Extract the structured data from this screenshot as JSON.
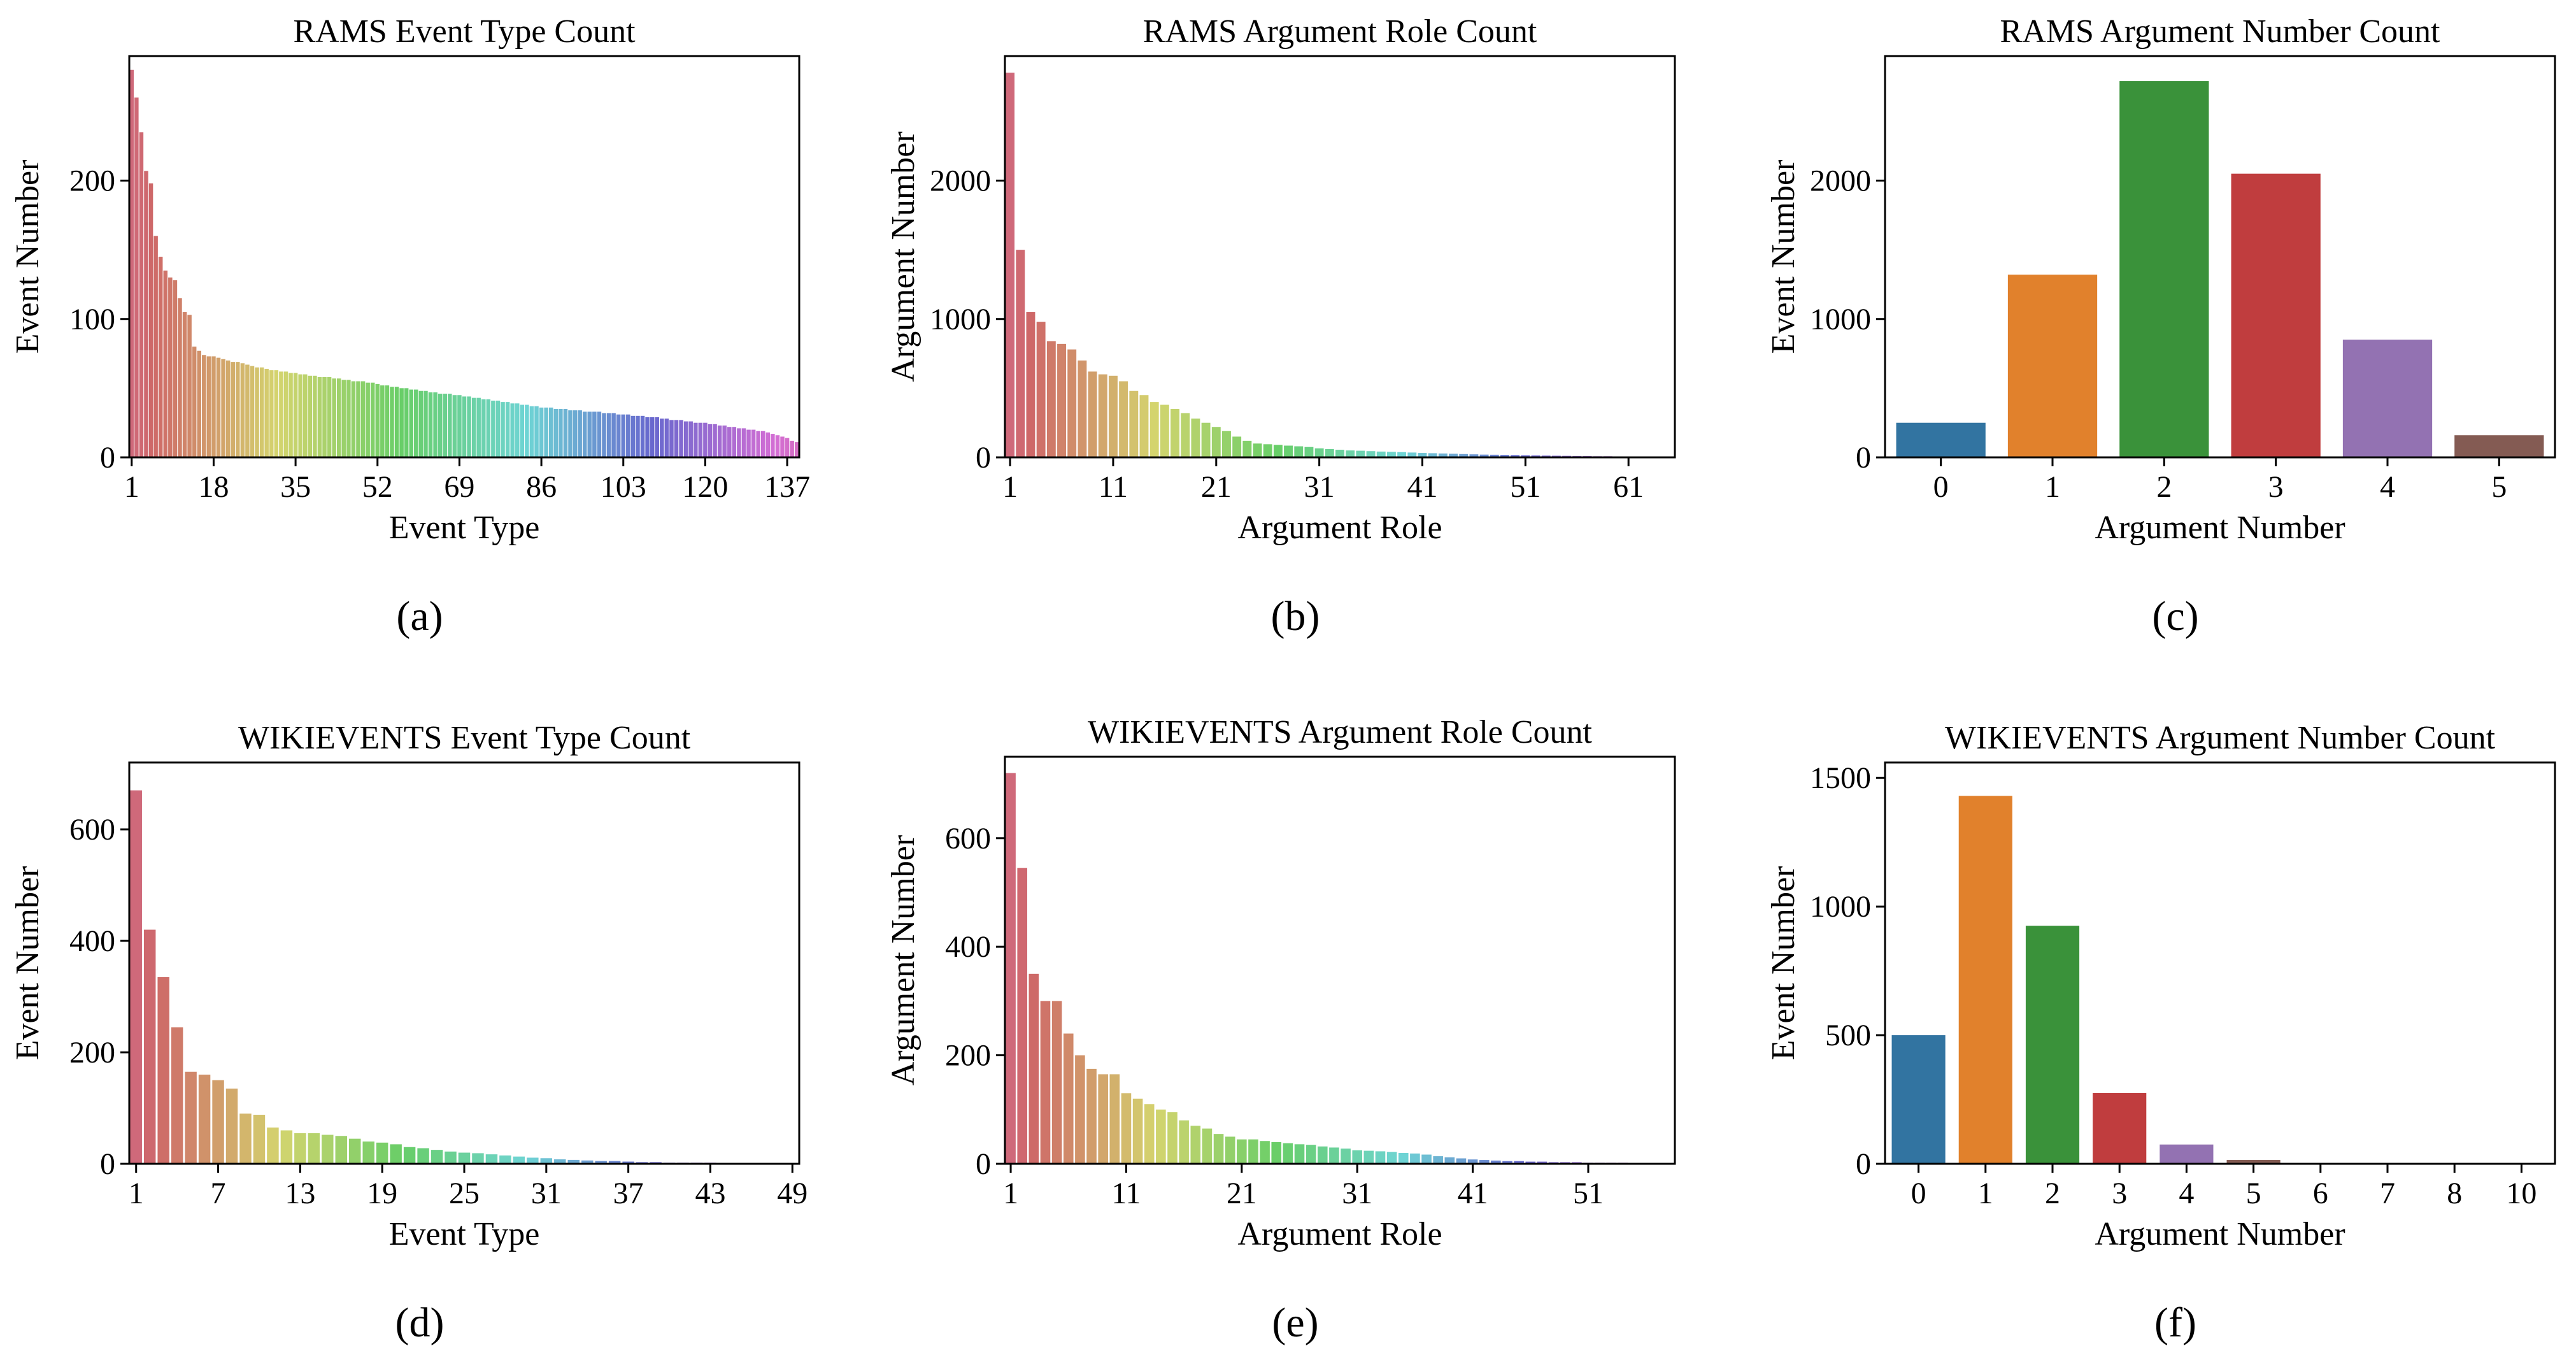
{
  "chart_data": [
    {
      "id": "a",
      "type": "bar",
      "title": "RAMS Event Type Count",
      "xlabel": "Event Type",
      "ylabel": "Event Number",
      "caption": "(a)",
      "ylim": [
        0,
        290
      ],
      "yticks": [
        0,
        100,
        200
      ],
      "xtick_labels": [
        "1",
        "18",
        "35",
        "52",
        "69",
        "86",
        "103",
        "120",
        "137"
      ],
      "palette": "husl",
      "categories": [
        "1",
        "2",
        "3",
        "4",
        "5",
        "6",
        "7",
        "8",
        "9",
        "10",
        "11",
        "12",
        "13",
        "14",
        "15",
        "16",
        "17",
        "18",
        "19",
        "20",
        "21",
        "22",
        "23",
        "24",
        "25",
        "26",
        "27",
        "28",
        "29",
        "30",
        "31",
        "32",
        "33",
        "34",
        "35",
        "36",
        "37",
        "38",
        "39",
        "40",
        "41",
        "42",
        "43",
        "44",
        "45",
        "46",
        "47",
        "48",
        "49",
        "50",
        "51",
        "52",
        "53",
        "54",
        "55",
        "56",
        "57",
        "58",
        "59",
        "60",
        "61",
        "62",
        "63",
        "64",
        "65",
        "66",
        "67",
        "68",
        "69",
        "70",
        "71",
        "72",
        "73",
        "74",
        "75",
        "76",
        "77",
        "78",
        "79",
        "80",
        "81",
        "82",
        "83",
        "84",
        "85",
        "86",
        "87",
        "88",
        "89",
        "90",
        "91",
        "92",
        "93",
        "94",
        "95",
        "96",
        "97",
        "98",
        "99",
        "100",
        "101",
        "102",
        "103",
        "104",
        "105",
        "106",
        "107",
        "108",
        "109",
        "110",
        "111",
        "112",
        "113",
        "114",
        "115",
        "116",
        "117",
        "118",
        "119",
        "120",
        "121",
        "122",
        "123",
        "124",
        "125",
        "126",
        "127",
        "128",
        "129",
        "130",
        "131",
        "132",
        "133",
        "134",
        "135",
        "136",
        "137",
        "138",
        "139"
      ],
      "values": [
        280,
        260,
        235,
        207,
        198,
        160,
        145,
        135,
        130,
        128,
        115,
        105,
        103,
        80,
        77,
        74,
        73,
        73,
        72,
        71,
        70,
        69,
        69,
        68,
        67,
        66,
        65,
        65,
        64,
        63,
        63,
        62,
        62,
        61,
        61,
        60,
        60,
        59,
        59,
        58,
        58,
        58,
        57,
        57,
        56,
        56,
        55,
        55,
        55,
        54,
        54,
        53,
        52,
        52,
        51,
        51,
        50,
        50,
        49,
        49,
        48,
        48,
        47,
        47,
        46,
        46,
        46,
        45,
        45,
        44,
        44,
        43,
        43,
        42,
        42,
        41,
        41,
        40,
        40,
        39,
        39,
        38,
        38,
        37,
        37,
        36,
        36,
        36,
        35,
        35,
        35,
        34,
        34,
        34,
        33,
        33,
        33,
        33,
        32,
        32,
        32,
        31,
        31,
        31,
        30,
        30,
        30,
        29,
        29,
        29,
        28,
        28,
        27,
        27,
        27,
        26,
        26,
        25,
        25,
        25,
        24,
        24,
        23,
        23,
        22,
        22,
        21,
        21,
        20,
        20,
        19,
        19,
        18,
        17,
        16,
        15,
        14,
        12,
        11
      ]
    },
    {
      "id": "b",
      "type": "bar",
      "title": "RAMS Argument Role Count",
      "xlabel": "Argument Role",
      "ylabel": "Argument Number",
      "caption": "(b)",
      "ylim": [
        0,
        2900
      ],
      "yticks": [
        0,
        1000,
        2000
      ],
      "xtick_labels": [
        "1",
        "11",
        "21",
        "31",
        "41",
        "51",
        "61"
      ],
      "palette": "husl",
      "categories": [
        "1",
        "2",
        "3",
        "4",
        "5",
        "6",
        "7",
        "8",
        "9",
        "10",
        "11",
        "12",
        "13",
        "14",
        "15",
        "16",
        "17",
        "18",
        "19",
        "20",
        "21",
        "22",
        "23",
        "24",
        "25",
        "26",
        "27",
        "28",
        "29",
        "30",
        "31",
        "32",
        "33",
        "34",
        "35",
        "36",
        "37",
        "38",
        "39",
        "40",
        "41",
        "42",
        "43",
        "44",
        "45",
        "46",
        "47",
        "48",
        "49",
        "50",
        "51",
        "52",
        "53",
        "54",
        "55",
        "56",
        "57",
        "58",
        "59",
        "60",
        "61",
        "62",
        "63",
        "64",
        "65"
      ],
      "values": [
        2780,
        1500,
        1050,
        980,
        840,
        820,
        780,
        700,
        620,
        600,
        590,
        550,
        480,
        450,
        400,
        380,
        350,
        320,
        280,
        250,
        220,
        190,
        150,
        120,
        100,
        95,
        90,
        85,
        80,
        75,
        65,
        60,
        55,
        50,
        48,
        45,
        42,
        40,
        38,
        35,
        32,
        30,
        28,
        26,
        24,
        22,
        20,
        19,
        18,
        17,
        15,
        14,
        13,
        12,
        11,
        10,
        9,
        8,
        8,
        7,
        6,
        5,
        5,
        4,
        3
      ]
    },
    {
      "id": "c",
      "type": "bar",
      "title": "RAMS Argument Number Count",
      "xlabel": "Argument Number",
      "ylabel": "Event Number",
      "caption": "(c)",
      "ylim": [
        0,
        2900
      ],
      "yticks": [
        0,
        1000,
        2000
      ],
      "categories": [
        "0",
        "1",
        "2",
        "3",
        "4",
        "5"
      ],
      "values": [
        250,
        1320,
        2720,
        2050,
        850,
        160
      ],
      "colors": [
        "#3274a1",
        "#e1812c",
        "#3a923a",
        "#c03d3e",
        "#9372b2",
        "#845b53"
      ]
    },
    {
      "id": "d",
      "type": "bar",
      "title": "WIKIEVENTS Event Type Count",
      "xlabel": "Event Type",
      "ylabel": "Event Number",
      "caption": "(d)",
      "ylim": [
        0,
        720
      ],
      "yticks": [
        0,
        200,
        400,
        600
      ],
      "xtick_labels": [
        "1",
        "7",
        "13",
        "19",
        "25",
        "31",
        "37",
        "43",
        "49"
      ],
      "palette": "husl",
      "categories": [
        "1",
        "2",
        "3",
        "4",
        "5",
        "6",
        "7",
        "8",
        "9",
        "10",
        "11",
        "12",
        "13",
        "14",
        "15",
        "16",
        "17",
        "18",
        "19",
        "20",
        "21",
        "22",
        "23",
        "24",
        "25",
        "26",
        "27",
        "28",
        "29",
        "30",
        "31",
        "32",
        "33",
        "34",
        "35",
        "36",
        "37",
        "38",
        "39",
        "40",
        "41",
        "42",
        "43",
        "44",
        "45",
        "46",
        "47",
        "48",
        "49"
      ],
      "values": [
        670,
        420,
        335,
        245,
        165,
        160,
        150,
        135,
        90,
        88,
        65,
        60,
        55,
        55,
        52,
        50,
        45,
        40,
        38,
        35,
        30,
        28,
        25,
        22,
        20,
        19,
        17,
        15,
        13,
        11,
        10,
        8,
        7,
        6,
        5,
        5,
        4,
        3,
        3,
        2,
        2,
        2,
        2,
        1,
        1,
        1,
        1,
        1,
        1
      ]
    },
    {
      "id": "e",
      "type": "bar",
      "title": "WIKIEVENTS Argument Role Count",
      "xlabel": "Argument Role",
      "ylabel": "Argument Number",
      "caption": "(e)",
      "ylim": [
        0,
        750
      ],
      "yticks": [
        0,
        200,
        400,
        600
      ],
      "xtick_labels": [
        "1",
        "11",
        "21",
        "31",
        "41",
        "51"
      ],
      "palette": "husl",
      "categories": [
        "1",
        "2",
        "3",
        "4",
        "5",
        "6",
        "7",
        "8",
        "9",
        "10",
        "11",
        "12",
        "13",
        "14",
        "15",
        "16",
        "17",
        "18",
        "19",
        "20",
        "21",
        "22",
        "23",
        "24",
        "25",
        "26",
        "27",
        "28",
        "29",
        "30",
        "31",
        "32",
        "33",
        "34",
        "35",
        "36",
        "37",
        "38",
        "39",
        "40",
        "41",
        "42",
        "43",
        "44",
        "45",
        "46",
        "47",
        "48",
        "49",
        "50",
        "51",
        "52",
        "53",
        "54",
        "55",
        "56",
        "57",
        "58"
      ],
      "values": [
        720,
        545,
        350,
        300,
        300,
        240,
        200,
        175,
        165,
        165,
        130,
        120,
        110,
        100,
        95,
        80,
        70,
        65,
        55,
        50,
        45,
        45,
        42,
        40,
        38,
        36,
        35,
        32,
        30,
        28,
        25,
        24,
        23,
        22,
        20,
        19,
        17,
        14,
        12,
        10,
        8,
        7,
        6,
        5,
        5,
        4,
        4,
        3,
        3,
        3,
        2,
        2,
        2,
        2,
        1,
        1,
        1,
        1
      ]
    },
    {
      "id": "f",
      "type": "bar",
      "title": "WIKIEVENTS Argument Number Count",
      "xlabel": "Argument Number",
      "ylabel": "Event Number",
      "caption": "(f)",
      "ylim": [
        0,
        1560
      ],
      "yticks": [
        0,
        500,
        1000,
        1500
      ],
      "categories": [
        "0",
        "1",
        "2",
        "3",
        "4",
        "5",
        "6",
        "7",
        "8",
        "10"
      ],
      "values": [
        500,
        1430,
        925,
        275,
        75,
        15,
        3,
        2,
        2,
        2
      ],
      "colors": [
        "#3274a1",
        "#e1812c",
        "#3a923a",
        "#c03d3e",
        "#9372b2",
        "#845b53",
        "#d684bd",
        "#7f7f7f",
        "#a9aa35",
        "#2ed0e6"
      ]
    }
  ]
}
